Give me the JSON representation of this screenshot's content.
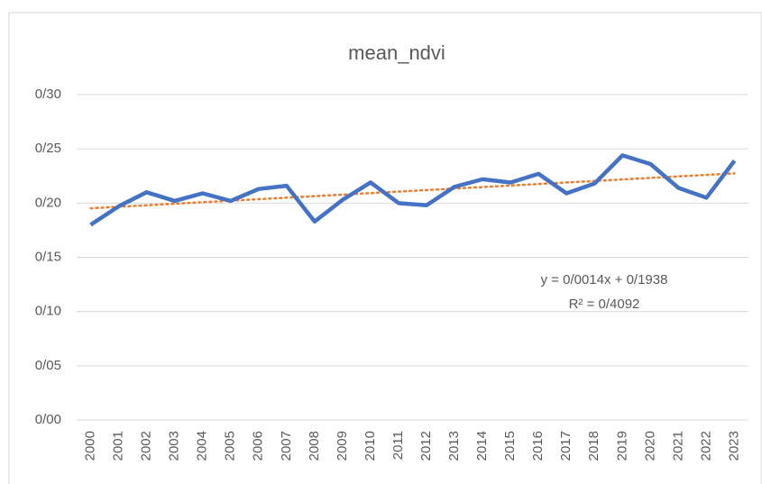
{
  "chart_data": {
    "type": "line",
    "title": "mean_ndvi",
    "categories": [
      "2000",
      "2001",
      "2002",
      "2003",
      "2004",
      "2005",
      "2006",
      "2007",
      "2008",
      "2009",
      "2010",
      "2011",
      "2012",
      "2013",
      "2014",
      "2015",
      "2016",
      "2017",
      "2018",
      "2019",
      "2020",
      "2021",
      "2022",
      "2023"
    ],
    "series": [
      {
        "name": "mean_ndvi",
        "color": "#4472c4",
        "values": [
          0.18,
          0.197,
          0.21,
          0.202,
          0.209,
          0.202,
          0.213,
          0.216,
          0.183,
          0.203,
          0.219,
          0.2,
          0.198,
          0.215,
          0.222,
          0.219,
          0.227,
          0.209,
          0.218,
          0.244,
          0.236,
          0.214,
          0.205,
          0.239
        ]
      }
    ],
    "trendline": {
      "slope": 0.0014,
      "intercept": 0.1938,
      "color": "#ed7d31"
    },
    "annotations": [
      "y = 0/0014x + 0/1938",
      "R² = 0/4092"
    ],
    "ylim": [
      0,
      0.3
    ],
    "yticks": [
      {
        "value": 0,
        "label": "0/00"
      },
      {
        "value": 0.05,
        "label": "0/05"
      },
      {
        "value": 0.1,
        "label": "0/10"
      },
      {
        "value": 0.15,
        "label": "0/15"
      },
      {
        "value": 0.2,
        "label": "0/20"
      },
      {
        "value": 0.25,
        "label": "0/25"
      },
      {
        "value": 0.3,
        "label": "0/30"
      }
    ],
    "grid": true
  }
}
